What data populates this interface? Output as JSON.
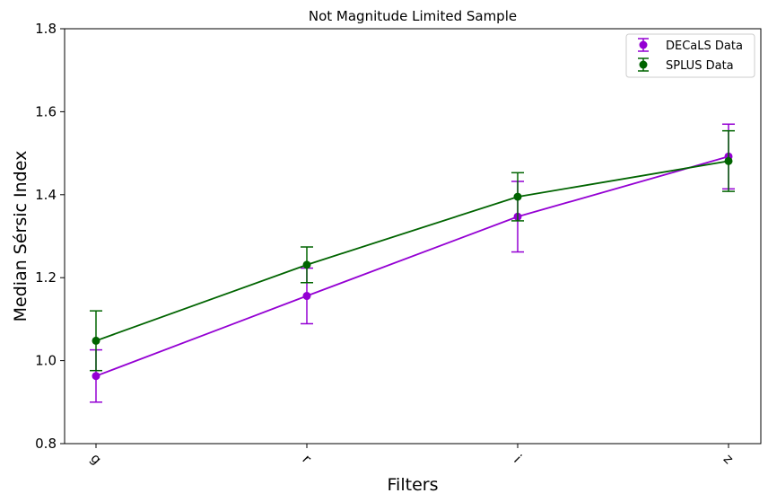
{
  "chart_data": {
    "type": "line",
    "title": "Not Magnitude Limited Sample",
    "xlabel": "Filters",
    "ylabel": "Median Sérsic Index",
    "categories": [
      "g",
      "r",
      "i",
      "z"
    ],
    "ylim": [
      0.8,
      1.8
    ],
    "yticks": [
      "0.8",
      "1.0",
      "1.2",
      "1.4",
      "1.6",
      "1.8"
    ],
    "grid": false,
    "legend_position": "top-right",
    "series": [
      {
        "name": "DECaLS Data",
        "color": "#9400d3",
        "values": [
          0.963,
          1.156,
          1.347,
          1.492
        ],
        "err": [
          0.063,
          0.067,
          0.085,
          0.078
        ]
      },
      {
        "name": "SPLUS Data",
        "color": "#006400",
        "values": [
          1.048,
          1.231,
          1.395,
          1.481
        ],
        "err": [
          0.072,
          0.043,
          0.058,
          0.073
        ]
      }
    ]
  }
}
